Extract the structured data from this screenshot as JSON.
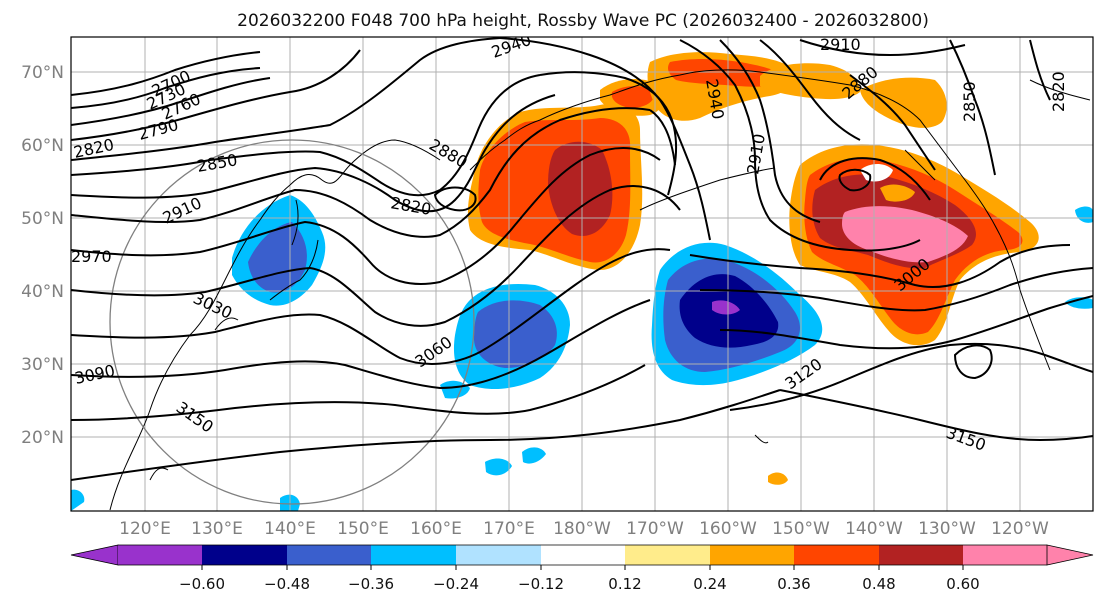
{
  "title": "2026032200 F048 700 hPa height, Rossby Wave PC (2026032400 - 2026032800)",
  "lat_labels": [
    "70°N",
    "60°N",
    "50°N",
    "40°N",
    "30°N",
    "20°N"
  ],
  "lon_labels": [
    "120°E",
    "130°E",
    "140°E",
    "150°E",
    "160°E",
    "170°E",
    "180°W",
    "170°W",
    "160°W",
    "150°W",
    "140°W",
    "130°W",
    "120°W"
  ],
  "colorbar": {
    "colors": [
      "#9932cc",
      "#00008b",
      "#3a5fcd",
      "#00bfff",
      "#b0e2ff",
      "#ffffff",
      "#ffec8b",
      "#ffa500",
      "#ff4500",
      "#b22222",
      "#ff82ab"
    ],
    "tick_labels": [
      "−0.60",
      "−0.48",
      "−0.36",
      "−0.24",
      "−0.12",
      "0.12",
      "0.24",
      "0.36",
      "0.48",
      "0.60"
    ]
  },
  "contour_labels": [
    "2700",
    "2730",
    "2760",
    "2790",
    "2820",
    "2850",
    "2910",
    "2970",
    "3030",
    "3090",
    "3150",
    "2940",
    "2880",
    "2820",
    "3060",
    "2910",
    "2940",
    "2880",
    "2910",
    "2850",
    "2820",
    "3000",
    "3120",
    "3150"
  ]
}
